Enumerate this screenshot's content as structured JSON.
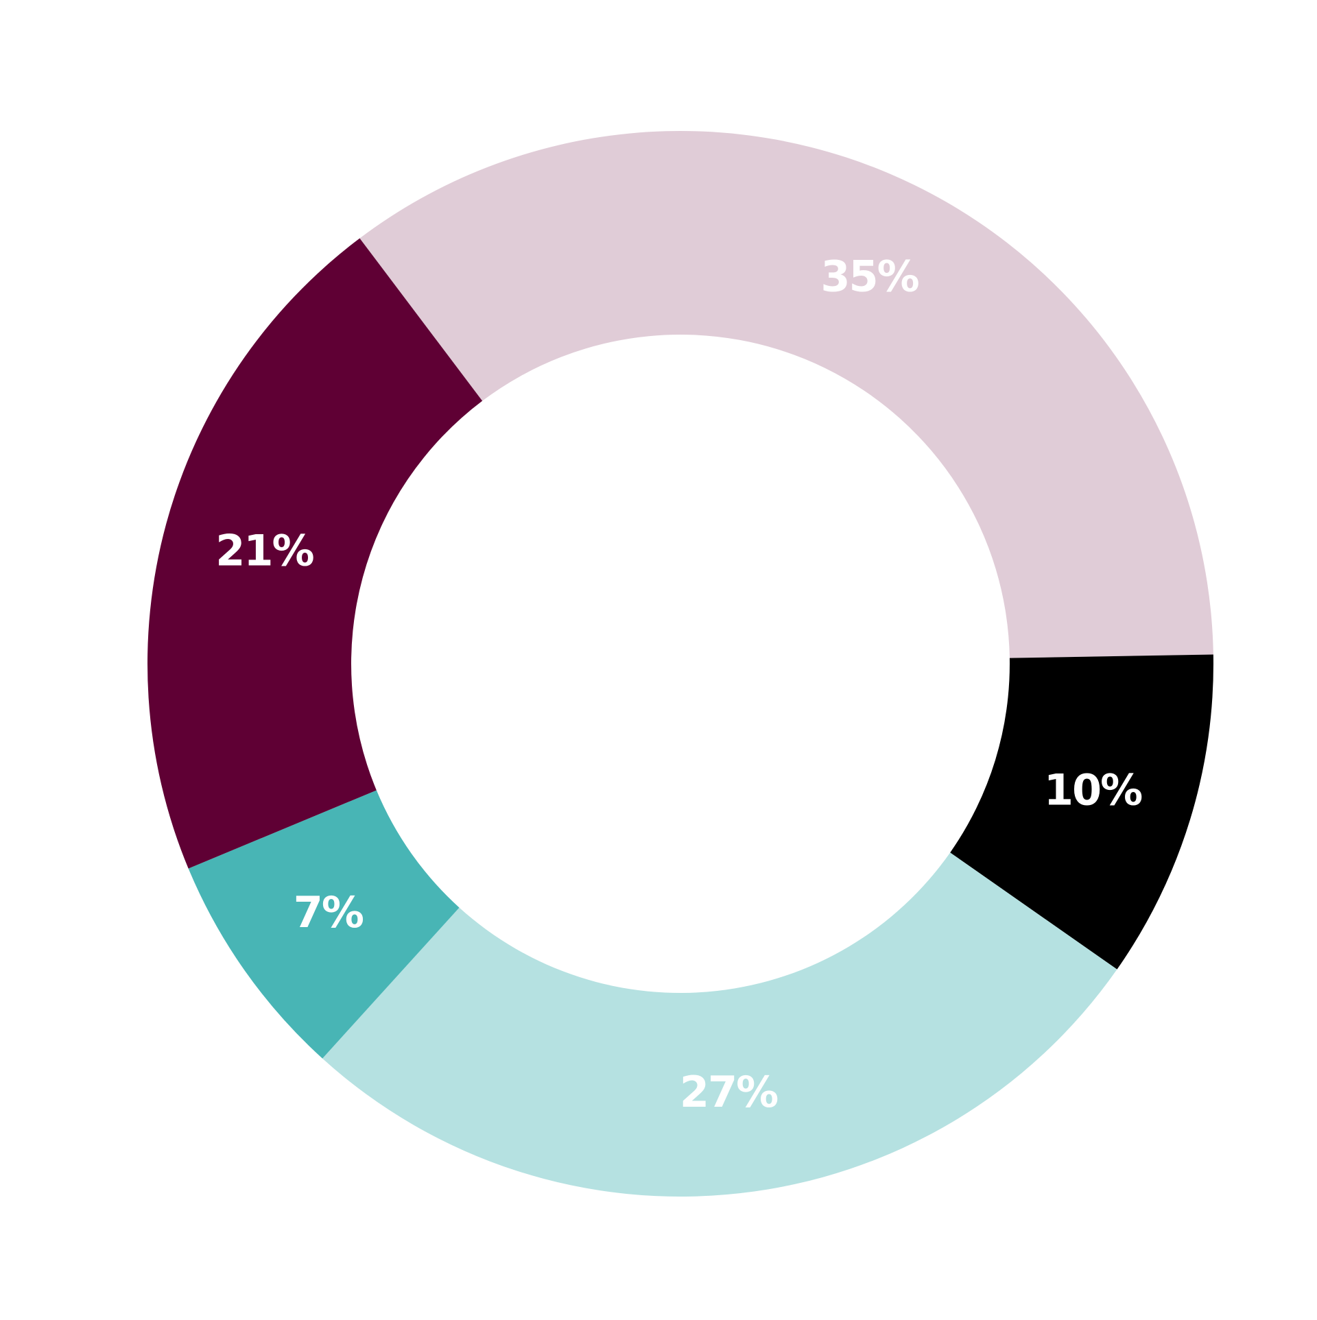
{
  "chart_data": {
    "type": "pie",
    "donut": true,
    "title": "",
    "slices": [
      {
        "value": 35,
        "label": "35%",
        "color": "#E0CCD7"
      },
      {
        "value": 10,
        "label": "10%",
        "color": "#000000"
      },
      {
        "value": 27,
        "label": "27%",
        "color": "#B5E1E1"
      },
      {
        "value": 7,
        "label": "7%",
        "color": "#48B5B5"
      },
      {
        "value": 21,
        "label": "21%",
        "color": "#5F0034"
      }
    ],
    "label_color": "#FFFFFF",
    "legend": "none"
  }
}
